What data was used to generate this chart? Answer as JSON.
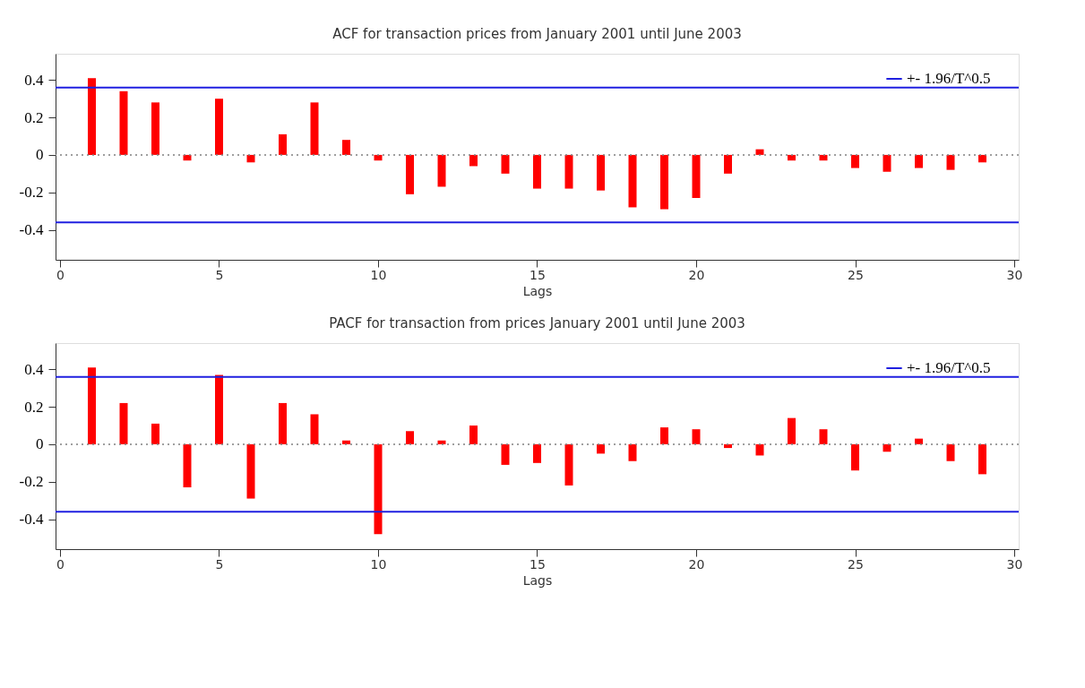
{
  "chart_data": [
    {
      "type": "bar",
      "title": "ACF for transaction prices from January 2001 until June 2003",
      "xlabel": "Lags",
      "color": "#ff0000",
      "x": [
        1,
        2,
        3,
        4,
        5,
        6,
        7,
        8,
        9,
        10,
        11,
        12,
        13,
        14,
        15,
        16,
        17,
        18,
        19,
        20,
        21,
        22,
        23,
        24,
        25,
        26,
        27,
        28,
        29
      ],
      "values": [
        0.41,
        0.34,
        0.28,
        -0.03,
        0.3,
        -0.04,
        0.11,
        0.28,
        0.08,
        -0.03,
        -0.21,
        -0.17,
        -0.06,
        -0.1,
        -0.18,
        -0.18,
        -0.19,
        -0.28,
        -0.29,
        -0.23,
        -0.1,
        0.03,
        -0.03,
        -0.03,
        -0.07,
        -0.09,
        -0.07,
        -0.08,
        -0.04
      ],
      "xlim": [
        0,
        30
      ],
      "xticks": [
        0,
        5,
        10,
        15,
        20,
        25,
        30
      ],
      "ylim": [
        -0.56,
        0.54
      ],
      "yticks": [
        -0.4,
        -0.2,
        0,
        0.2,
        0.4
      ],
      "ref_lines": [
        {
          "axis": "y",
          "value": 0.36,
          "label": "+-    1.96/T^0.5",
          "color": "#2020e0"
        },
        {
          "axis": "y",
          "value": -0.36,
          "color": "#2020e0"
        },
        {
          "axis": "y",
          "value": 0,
          "color": "#808080",
          "line_style": "dotted"
        }
      ],
      "legend": "top right",
      "grid": false
    },
    {
      "type": "bar",
      "title": "PACF for transaction from prices January 2001 until June 2003",
      "xlabel": "Lags",
      "color": "#ff0000",
      "x": [
        1,
        2,
        3,
        4,
        5,
        6,
        7,
        8,
        9,
        10,
        11,
        12,
        13,
        14,
        15,
        16,
        17,
        18,
        19,
        20,
        21,
        22,
        23,
        24,
        25,
        26,
        27,
        28,
        29
      ],
      "values": [
        0.41,
        0.22,
        0.11,
        -0.23,
        0.37,
        -0.29,
        0.22,
        0.16,
        0.02,
        -0.48,
        0.07,
        0.02,
        0.1,
        -0.11,
        -0.1,
        -0.22,
        -0.05,
        -0.09,
        0.09,
        0.08,
        -0.02,
        -0.06,
        0.14,
        0.08,
        -0.14,
        -0.04,
        0.03,
        -0.09,
        -0.16
      ],
      "xlim": [
        0,
        30
      ],
      "xticks": [
        0,
        5,
        10,
        15,
        20,
        25,
        30
      ],
      "ylim": [
        -0.56,
        0.54
      ],
      "yticks": [
        -0.4,
        -0.2,
        0,
        0.2,
        0.4
      ],
      "ref_lines": [
        {
          "axis": "y",
          "value": 0.36,
          "label": "+-    1.96/T^0.5",
          "color": "#2020e0"
        },
        {
          "axis": "y",
          "value": -0.36,
          "color": "#2020e0"
        },
        {
          "axis": "y",
          "value": 0,
          "color": "#808080",
          "line_style": "dotted"
        }
      ],
      "legend": "top right",
      "grid": false
    }
  ]
}
